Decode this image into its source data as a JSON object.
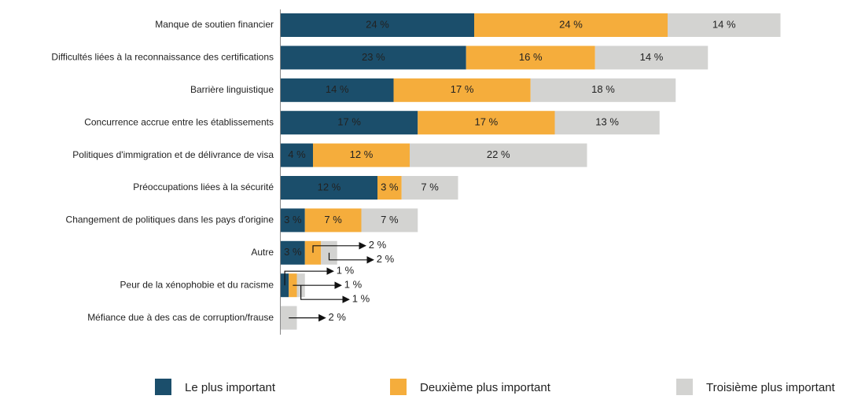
{
  "chart_data": {
    "type": "stacked-bar-horizontal",
    "categories": [
      "Manque de soutien financier",
      "Difficultés liées à la reconnaissance des certifications",
      "Barrière linguistique",
      "Concurrence accrue entre les établissements",
      "Politiques d'immigration et de délivrance de visa",
      "Préoccupations liées à la sécurité",
      "Changement de politiques dans les pays d'origine",
      "Autre",
      "Peur de la xénophobie et du racisme",
      "Méfiance due à des cas de corruption/frause"
    ],
    "series": [
      {
        "name": "Le plus important",
        "color": "#1b4e6b",
        "text_color": "#ffffff",
        "values": [
          24,
          23,
          14,
          17,
          4,
          12,
          3,
          3,
          1,
          null
        ],
        "value_labels": [
          "24 %",
          "23 %",
          "14 %",
          "17 %",
          "4 %",
          "12 %",
          "3 %",
          "3 %",
          "1 %",
          null
        ]
      },
      {
        "name": "Deuxième plus important",
        "color": "#f5ad3c",
        "text_color": "#222222",
        "values": [
          24,
          16,
          17,
          17,
          12,
          3,
          7,
          2,
          1,
          null
        ],
        "value_labels": [
          "24 %",
          "16 %",
          "17 %",
          "17 %",
          "12 %",
          "3 %",
          "7 %",
          "2 %",
          "1 %",
          null
        ]
      },
      {
        "name": "Troisième plus important",
        "color": "#d3d3d1",
        "text_color": "#222222",
        "values": [
          14,
          14,
          18,
          13,
          22,
          7,
          7,
          2,
          1,
          2
        ],
        "value_labels": [
          "14 %",
          "14 %",
          "18 %",
          "13 %",
          "22 %",
          "7 %",
          "7 %",
          "2 %",
          "1 %",
          "2 %"
        ]
      }
    ]
  }
}
